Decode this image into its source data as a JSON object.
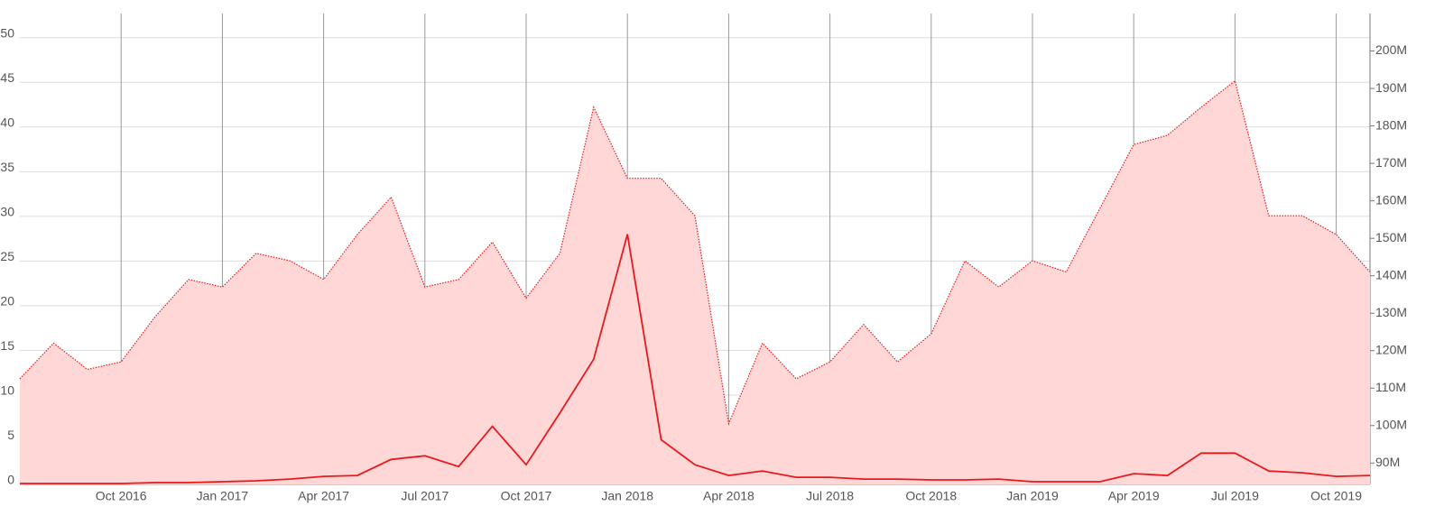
{
  "chart_data": {
    "type": "line",
    "x": [
      "2016-07",
      "2016-08",
      "2016-09",
      "2016-10",
      "2016-11",
      "2016-12",
      "2017-01",
      "2017-02",
      "2017-03",
      "2017-04",
      "2017-05",
      "2017-06",
      "2017-07",
      "2017-08",
      "2017-09",
      "2017-10",
      "2017-11",
      "2017-12",
      "2018-01",
      "2018-02",
      "2018-03",
      "2018-04",
      "2018-05",
      "2018-06",
      "2018-07",
      "2018-08",
      "2018-09",
      "2018-10",
      "2018-11",
      "2018-12",
      "2019-01",
      "2019-02",
      "2019-03",
      "2019-04",
      "2019-05",
      "2019-06",
      "2019-07",
      "2019-08",
      "2019-09",
      "2019-10",
      "2019-11"
    ],
    "series": [
      {
        "color": "#e8191c",
        "fill": "#ffd7d7",
        "style": "dotted",
        "axis": "y2",
        "values": [
          112500000,
          122000000,
          115000000,
          117000000,
          129000000,
          139000000,
          137000000,
          146000000,
          144000000,
          139000000,
          151000000,
          161000000,
          137000000,
          139000000,
          149000000,
          134000000,
          146000000,
          185000000,
          166000000,
          166000000,
          156000000,
          100500000,
          122000000,
          112500000,
          117000000,
          127000000,
          117000000,
          124500000,
          144000000,
          137000000,
          144000000,
          141000000,
          158000000,
          175000000,
          177500000,
          185000000,
          192000000,
          156000000,
          156000000,
          151000000,
          141000000
        ]
      },
      {
        "color": "#e8191c",
        "style": "solid",
        "axis": "y",
        "values": [
          0.1,
          0.1,
          0.1,
          0.1,
          0.2,
          0.2,
          0.3,
          0.4,
          0.6,
          0.9,
          1.0,
          2.8,
          3.2,
          2.0,
          6.5,
          2.2,
          8,
          14,
          28,
          5,
          2.2,
          1.0,
          1.5,
          0.8,
          0.8,
          0.6,
          0.6,
          0.5,
          0.5,
          0.6,
          0.3,
          0.3,
          0.3,
          1.2,
          1.0,
          3.5,
          3.5,
          1.5,
          1.3,
          0.9,
          1.0
        ]
      }
    ],
    "xticks": [
      {
        "value": "2016-10",
        "label": "Oct 2016"
      },
      {
        "value": "2017-01",
        "label": "Jan 2017"
      },
      {
        "value": "2017-04",
        "label": "Apr 2017"
      },
      {
        "value": "2017-07",
        "label": "Jul 2017"
      },
      {
        "value": "2017-10",
        "label": "Oct 2017"
      },
      {
        "value": "2018-01",
        "label": "Jan 2018"
      },
      {
        "value": "2018-04",
        "label": "Apr 2018"
      },
      {
        "value": "2018-07",
        "label": "Jul 2018"
      },
      {
        "value": "2018-10",
        "label": "Oct 2018"
      },
      {
        "value": "2019-01",
        "label": "Jan 2019"
      },
      {
        "value": "2019-04",
        "label": "Apr 2019"
      },
      {
        "value": "2019-07",
        "label": "Jul 2019"
      },
      {
        "value": "2019-10",
        "label": "Oct 2019"
      }
    ],
    "ylim": [
      0,
      52.7
    ],
    "yticks": [
      0,
      5,
      10,
      15,
      20,
      25,
      30,
      35,
      40,
      45,
      50
    ],
    "y2lim": [
      84300000,
      210000000
    ],
    "y2ticks": [
      {
        "value": 90000000,
        "label": "90M"
      },
      {
        "value": 100000000,
        "label": "100M"
      },
      {
        "value": 110000000,
        "label": "110M"
      },
      {
        "value": 120000000,
        "label": "120M"
      },
      {
        "value": 130000000,
        "label": "130M"
      },
      {
        "value": 140000000,
        "label": "140M"
      },
      {
        "value": 150000000,
        "label": "150M"
      },
      {
        "value": 160000000,
        "label": "160M"
      },
      {
        "value": 170000000,
        "label": "170M"
      },
      {
        "value": 180000000,
        "label": "180M"
      },
      {
        "value": 190000000,
        "label": "190M"
      },
      {
        "value": 200000000,
        "label": "200M"
      }
    ],
    "grid": true
  }
}
